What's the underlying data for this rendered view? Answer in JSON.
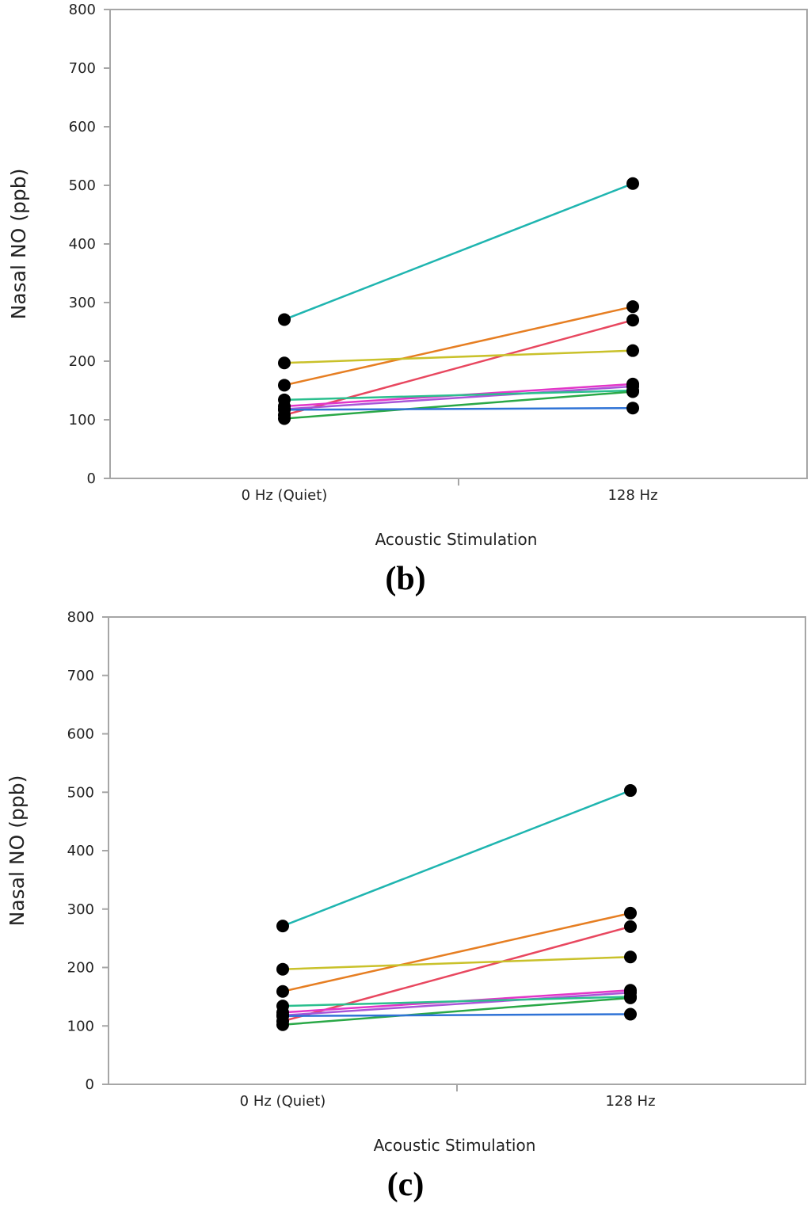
{
  "chart_data": [
    {
      "type": "line",
      "panel_label": "(b)",
      "xlabel": "Acoustic Stimulation",
      "ylabel": "Nasal NO (ppb)",
      "ylim": [
        0,
        800
      ],
      "yticks": [
        "0",
        "100",
        "200",
        "300",
        "400",
        "500",
        "600",
        "700",
        "800"
      ],
      "categories": [
        "0 Hz (Quiet)",
        "128 Hz"
      ],
      "grid": false,
      "series": [
        {
          "name": "teal",
          "color": "#1fb5b0",
          "values": [
            271,
            503
          ]
        },
        {
          "name": "orange",
          "color": "#e67e22",
          "values": [
            159,
            293
          ]
        },
        {
          "name": "red",
          "color": "#e8475f",
          "values": [
            108,
            270
          ]
        },
        {
          "name": "yellow",
          "color": "#c9c12a",
          "values": [
            197,
            218
          ]
        },
        {
          "name": "magenta",
          "color": "#e236c8",
          "values": [
            123,
            161
          ]
        },
        {
          "name": "purple",
          "color": "#a855d8",
          "values": [
            118,
            157
          ]
        },
        {
          "name": "sea-green",
          "color": "#2bbf8e",
          "values": [
            134,
            150
          ]
        },
        {
          "name": "green",
          "color": "#2aa847",
          "values": [
            102,
            148
          ]
        },
        {
          "name": "blue",
          "color": "#2f73d6",
          "values": [
            117,
            120
          ]
        }
      ]
    },
    {
      "type": "line",
      "panel_label": "(c)",
      "xlabel": "Acoustic Stimulation",
      "ylabel": "Nasal NO (ppb)",
      "ylim": [
        0,
        800
      ],
      "yticks": [
        "0",
        "100",
        "200",
        "300",
        "400",
        "500",
        "600",
        "700",
        "800"
      ],
      "categories": [
        "0 Hz (Quiet)",
        "128 Hz"
      ],
      "grid": false,
      "series": [
        {
          "name": "teal",
          "color": "#1fb5b0",
          "values": [
            271,
            503
          ]
        },
        {
          "name": "orange",
          "color": "#e67e22",
          "values": [
            159,
            293
          ]
        },
        {
          "name": "red",
          "color": "#e8475f",
          "values": [
            108,
            270
          ]
        },
        {
          "name": "yellow",
          "color": "#c9c12a",
          "values": [
            197,
            218
          ]
        },
        {
          "name": "magenta",
          "color": "#e236c8",
          "values": [
            123,
            161
          ]
        },
        {
          "name": "purple",
          "color": "#a855d8",
          "values": [
            118,
            157
          ]
        },
        {
          "name": "sea-green",
          "color": "#2bbf8e",
          "values": [
            134,
            150
          ]
        },
        {
          "name": "green",
          "color": "#2aa847",
          "values": [
            102,
            148
          ]
        },
        {
          "name": "blue",
          "color": "#2f73d6",
          "values": [
            117,
            120
          ]
        }
      ]
    }
  ]
}
